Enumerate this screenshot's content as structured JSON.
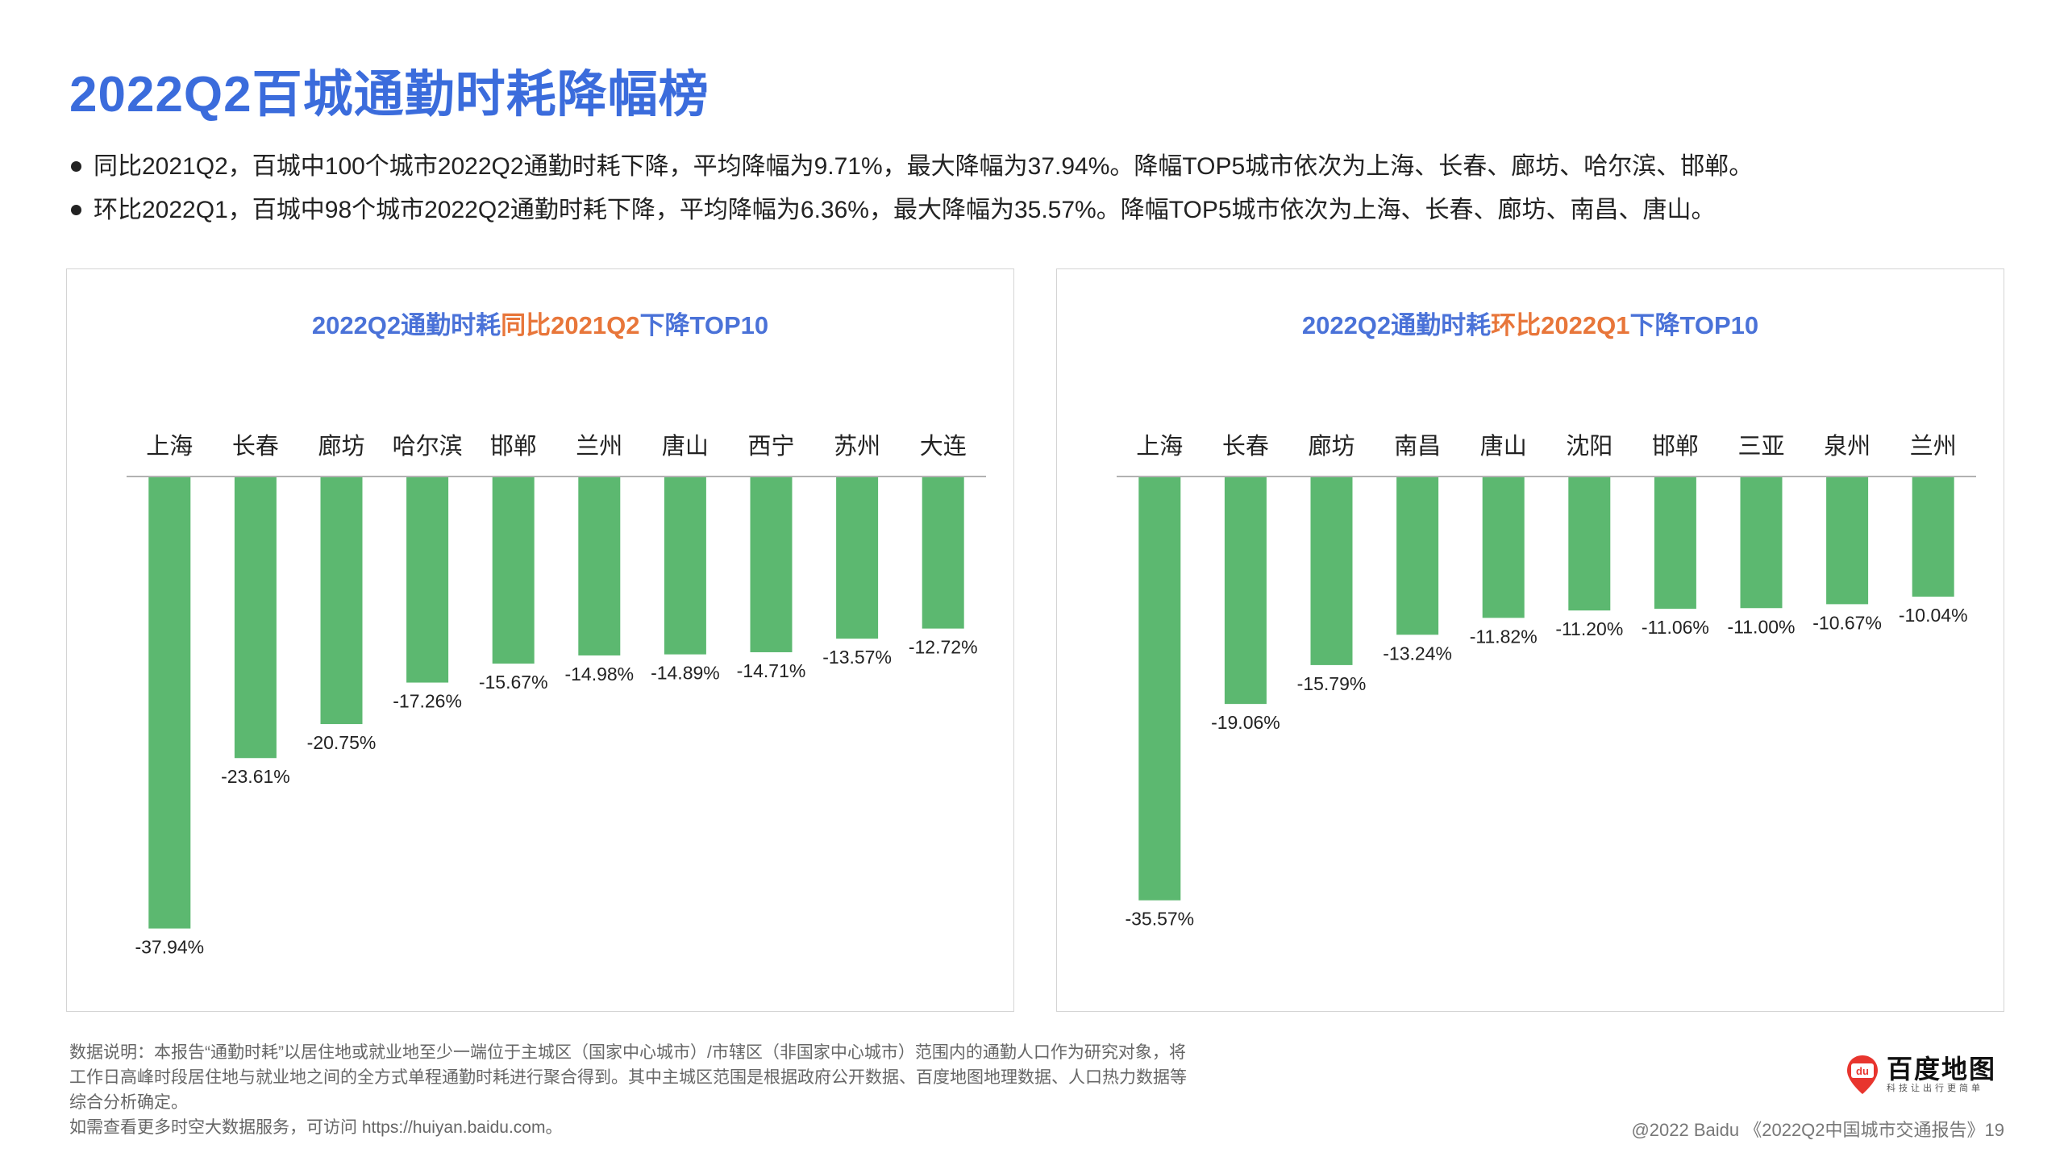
{
  "page": {
    "title": "2022Q2百城通勤时耗降幅榜",
    "bullets": [
      "同比2021Q2，百城中100个城市2022Q2通勤时耗下降，平均降幅为9.71%，最大降幅为37.94%。降幅TOP5城市依次为上海、长春、廊坊、哈尔滨、邯郸。",
      "环比2022Q1，百城中98个城市2022Q2通勤时耗下降，平均降幅为6.36%，最大降幅为35.57%。降幅TOP5城市依次为上海、长春、廊坊、南昌、唐山。"
    ],
    "footnote": {
      "lines": [
        "数据说明：本报告“通勤时耗”以居住地或就业地至少一端位于主城区（国家中心城市）/市辖区（非国家中心城市）范围内的通勤人口作为研究对象，将",
        "工作日高峰时段居住地与就业地之间的全方式单程通勤时耗进行聚合得到。其中主城区范围是根据政府公开数据、百度地图地理数据、人口热力数据等",
        "综合分析确定。",
        "如需查看更多时空大数据服务，可访问 https://huiyan.baidu.com。"
      ]
    },
    "logo": {
      "text": "百度地图",
      "slogan": "科技让出行更简单",
      "mark_text": "du"
    },
    "footer": "@2022 Baidu 《2022Q2中国城市交通报告》19"
  },
  "colors": {
    "title": "#3b6cdc",
    "chart_title": "#4a72d8",
    "highlight": "#e8763a",
    "bar": "#5cb870",
    "axis": "#999999"
  },
  "chart_data": [
    {
      "type": "bar",
      "title_parts": [
        "2022Q2通勤时耗",
        "同比2021Q2",
        "下降TOP10"
      ],
      "categories": [
        "上海",
        "长春",
        "廊坊",
        "哈尔滨",
        "邯郸",
        "兰州",
        "唐山",
        "西宁",
        "苏州",
        "大连"
      ],
      "values": [
        -37.94,
        -23.61,
        -20.75,
        -17.26,
        -15.67,
        -14.98,
        -14.89,
        -14.71,
        -13.57,
        -12.72
      ],
      "value_labels": [
        "-37.94%",
        "-23.61%",
        "-20.75%",
        "-17.26%",
        "-15.67%",
        "-14.98%",
        "-14.89%",
        "-14.71%",
        "-13.57%",
        "-12.72%"
      ],
      "ylim": [
        -40,
        0
      ],
      "xlabel": "",
      "ylabel": "",
      "grid": false,
      "legend": "none"
    },
    {
      "type": "bar",
      "title_parts": [
        "2022Q2通勤时耗",
        "环比2022Q1",
        "下降TOP10"
      ],
      "categories": [
        "上海",
        "长春",
        "廊坊",
        "南昌",
        "唐山",
        "沈阳",
        "邯郸",
        "三亚",
        "泉州",
        "兰州"
      ],
      "values": [
        -35.57,
        -19.06,
        -15.79,
        -13.24,
        -11.82,
        -11.2,
        -11.06,
        -11.0,
        -10.67,
        -10.04
      ],
      "value_labels": [
        "-35.57%",
        "-19.06%",
        "-15.79%",
        "-13.24%",
        "-11.82%",
        "-11.20%",
        "-11.06%",
        "-11.00%",
        "-10.67%",
        "-10.04%"
      ],
      "ylim": [
        -40,
        0
      ],
      "xlabel": "",
      "ylabel": "",
      "grid": false,
      "legend": "none"
    }
  ]
}
